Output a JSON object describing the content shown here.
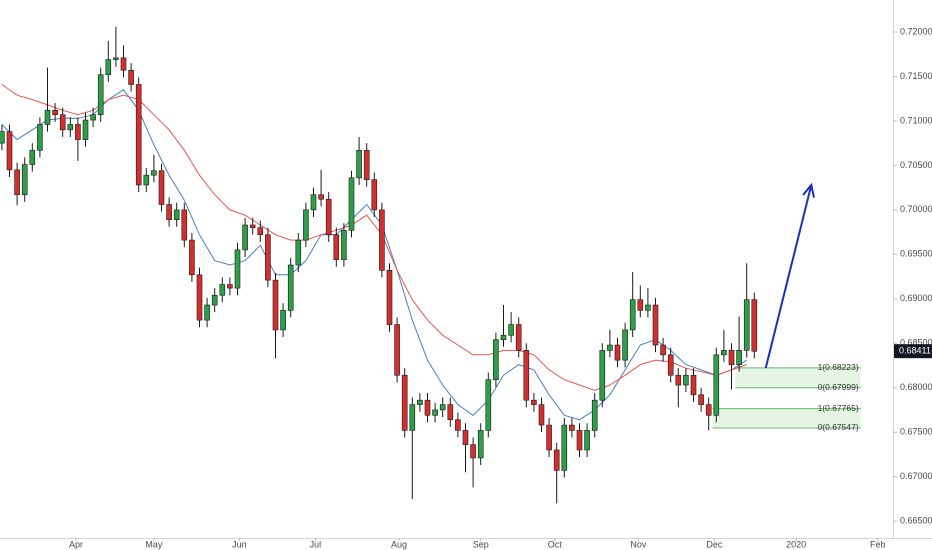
{
  "chart_data": {
    "type": "candlestick",
    "x": [
      0,
      2,
      4,
      6,
      8,
      10,
      12,
      14,
      16,
      18,
      20,
      22,
      24,
      26,
      28,
      30,
      32,
      34,
      36,
      38,
      40,
      42,
      44,
      46,
      48,
      50,
      52,
      54,
      56,
      58,
      60,
      62,
      64,
      66,
      68,
      70,
      72,
      74,
      76,
      78,
      80,
      82,
      84,
      86,
      88,
      90,
      92,
      94,
      96,
      98,
      100,
      102,
      104,
      106,
      108,
      110,
      112,
      114,
      116,
      118,
      120,
      122,
      124,
      126,
      128,
      130,
      132,
      134,
      136,
      138,
      140,
      142,
      144,
      146,
      148,
      150,
      152,
      154,
      156,
      158,
      160,
      162,
      164,
      166,
      168,
      170,
      172,
      174,
      176,
      178,
      180,
      182,
      184,
      186,
      188,
      190,
      192,
      194,
      196,
      198
    ],
    "open": [
      0.7075,
      0.7088,
      0.7045,
      0.7017,
      0.7051,
      0.7067,
      0.7096,
      0.7112,
      0.7107,
      0.709,
      0.7096,
      0.7079,
      0.7101,
      0.7107,
      0.7152,
      0.7169,
      0.7171,
      0.7157,
      0.7141,
      0.7028,
      0.7039,
      0.7044,
      0.7006,
      0.6989,
      0.7,
      0.6966,
      0.6927,
      0.6876,
      0.6893,
      0.6904,
      0.6916,
      0.6912,
      0.6955,
      0.6983,
      0.698,
      0.6972,
      0.6921,
      0.6865,
      0.6887,
      0.6938,
      0.6966,
      0.7,
      0.7017,
      0.7012,
      0.6972,
      0.6944,
      0.6977,
      0.7036,
      0.7067,
      0.7034,
      0.7,
      0.6932,
      0.6871,
      0.6814,
      0.6752,
      0.6781,
      0.6786,
      0.6769,
      0.6775,
      0.6781,
      0.6764,
      0.6752,
      0.6736,
      0.6721,
      0.6752,
      0.6809,
      0.6854,
      0.6859,
      0.6871,
      0.6842,
      0.6786,
      0.6781,
      0.6758,
      0.673,
      0.6707,
      0.6758,
      0.6752,
      0.673,
      0.6752,
      0.6786,
      0.6842,
      0.6848,
      0.6831,
      0.6865,
      0.6899,
      0.6887,
      0.6893,
      0.6848,
      0.6837,
      0.6814,
      0.6803,
      0.6814,
      0.6792,
      0.6781,
      0.6769,
      0.6837,
      0.6842,
      0.6826,
      0.6842,
      0.6899
    ],
    "high": [
      0.7096,
      0.7096,
      0.7053,
      0.7059,
      0.7075,
      0.7104,
      0.716,
      0.712,
      0.7115,
      0.7104,
      0.7104,
      0.7109,
      0.7115,
      0.716,
      0.719,
      0.7206,
      0.7185,
      0.7165,
      0.7149,
      0.7047,
      0.7062,
      0.7052,
      0.7014,
      0.7008,
      0.7008,
      0.6974,
      0.6935,
      0.6901,
      0.6912,
      0.6924,
      0.6924,
      0.6963,
      0.6991,
      0.6991,
      0.6988,
      0.698,
      0.6929,
      0.6895,
      0.6946,
      0.6974,
      0.7008,
      0.7025,
      0.7045,
      0.702,
      0.698,
      0.6985,
      0.7044,
      0.7082,
      0.7075,
      0.7042,
      0.7008,
      0.694,
      0.6879,
      0.6822,
      0.6789,
      0.6794,
      0.6794,
      0.6783,
      0.6789,
      0.6789,
      0.6772,
      0.676,
      0.6744,
      0.676,
      0.6817,
      0.6862,
      0.6893,
      0.6885,
      0.6879,
      0.685,
      0.6794,
      0.6789,
      0.6766,
      0.6738,
      0.6766,
      0.6766,
      0.676,
      0.676,
      0.6794,
      0.685,
      0.6865,
      0.6856,
      0.6873,
      0.693,
      0.6915,
      0.6912,
      0.6901,
      0.6856,
      0.6845,
      0.6822,
      0.6822,
      0.6822,
      0.68,
      0.6789,
      0.6845,
      0.6865,
      0.685,
      0.688,
      0.694,
      0.6907
    ],
    "low": [
      0.7067,
      0.7037,
      0.7005,
      0.7009,
      0.7043,
      0.7059,
      0.7088,
      0.7099,
      0.7082,
      0.7082,
      0.7055,
      0.7071,
      0.7093,
      0.7099,
      0.7144,
      0.7161,
      0.7149,
      0.7133,
      0.702,
      0.702,
      0.7031,
      0.6998,
      0.6981,
      0.6981,
      0.6958,
      0.6919,
      0.6868,
      0.6868,
      0.6885,
      0.6896,
      0.6904,
      0.6904,
      0.6947,
      0.6972,
      0.6964,
      0.6913,
      0.6833,
      0.6857,
      0.6879,
      0.693,
      0.6958,
      0.6992,
      0.7004,
      0.6964,
      0.6936,
      0.6936,
      0.6969,
      0.7028,
      0.7026,
      0.6992,
      0.6924,
      0.6863,
      0.6806,
      0.6744,
      0.6675,
      0.6773,
      0.6761,
      0.6761,
      0.6767,
      0.6756,
      0.6744,
      0.6705,
      0.6688,
      0.6713,
      0.6744,
      0.6801,
      0.6846,
      0.6851,
      0.6834,
      0.6778,
      0.6773,
      0.675,
      0.6722,
      0.667,
      0.6699,
      0.6744,
      0.6722,
      0.6722,
      0.6744,
      0.6778,
      0.6834,
      0.6823,
      0.6823,
      0.6857,
      0.6879,
      0.6879,
      0.684,
      0.6829,
      0.6806,
      0.6778,
      0.6795,
      0.6784,
      0.6773,
      0.6752,
      0.6761,
      0.6829,
      0.6798,
      0.6818,
      0.6834,
      0.6833
    ],
    "close": [
      0.7088,
      0.7045,
      0.7017,
      0.7051,
      0.7067,
      0.7096,
      0.7112,
      0.7107,
      0.709,
      0.7096,
      0.7079,
      0.7101,
      0.7107,
      0.7152,
      0.7169,
      0.7171,
      0.7157,
      0.7141,
      0.7028,
      0.7039,
      0.7044,
      0.7006,
      0.6989,
      0.7,
      0.6966,
      0.6927,
      0.6876,
      0.6893,
      0.6904,
      0.6916,
      0.6912,
      0.6955,
      0.6983,
      0.698,
      0.6972,
      0.6921,
      0.6865,
      0.6887,
      0.6938,
      0.6966,
      0.7,
      0.7017,
      0.7012,
      0.6972,
      0.6944,
      0.6977,
      0.7036,
      0.7067,
      0.7034,
      0.7,
      0.6932,
      0.6871,
      0.6814,
      0.6752,
      0.6781,
      0.6786,
      0.6769,
      0.6775,
      0.6781,
      0.6764,
      0.6752,
      0.6736,
      0.6721,
      0.6752,
      0.6809,
      0.6854,
      0.6859,
      0.6871,
      0.6842,
      0.6786,
      0.6781,
      0.6758,
      0.673,
      0.6707,
      0.6758,
      0.6752,
      0.673,
      0.6752,
      0.6786,
      0.6842,
      0.6848,
      0.6831,
      0.6865,
      0.6899,
      0.6887,
      0.6893,
      0.6848,
      0.6837,
      0.6814,
      0.6803,
      0.6814,
      0.6792,
      0.6781,
      0.6769,
      0.6837,
      0.6842,
      0.6826,
      0.6842,
      0.6899,
      0.6841
    ],
    "up_color": "#2e9e48",
    "down_color": "#d32f2f",
    "overlays": [
      {
        "color": "#4a7fc1",
        "x": [
          0,
          4,
          8,
          12,
          16,
          20,
          24,
          28,
          32,
          36,
          40,
          44,
          48,
          52,
          56,
          60,
          64,
          68,
          72,
          76,
          80,
          84,
          88,
          92,
          96,
          100,
          104,
          108,
          112,
          116,
          120,
          124,
          128,
          132,
          136,
          140,
          144,
          148,
          152,
          156,
          160,
          164,
          168,
          172,
          176,
          180,
          184,
          188,
          192,
          196
        ],
        "values": [
          0.7096,
          0.7079,
          0.709,
          0.7101,
          0.7103,
          0.7103,
          0.7107,
          0.7124,
          0.7135,
          0.7112,
          0.7073,
          0.7039,
          0.7011,
          0.6972,
          0.6943,
          0.6938,
          0.6943,
          0.696,
          0.6927,
          0.6927,
          0.6943,
          0.6972,
          0.6972,
          0.6989,
          0.7006,
          0.6983,
          0.6932,
          0.6876,
          0.6831,
          0.6803,
          0.6781,
          0.6769,
          0.6786,
          0.6814,
          0.6826,
          0.682,
          0.6792,
          0.6769,
          0.6764,
          0.6775,
          0.6792,
          0.682,
          0.6848,
          0.6854,
          0.6842,
          0.6826,
          0.682,
          0.6814,
          0.682,
          0.6831
        ]
      },
      {
        "color": "#ef5350",
        "x": [
          0,
          4,
          8,
          12,
          16,
          20,
          24,
          28,
          32,
          36,
          40,
          44,
          48,
          52,
          56,
          60,
          64,
          68,
          72,
          76,
          80,
          84,
          88,
          92,
          96,
          100,
          104,
          108,
          112,
          116,
          120,
          124,
          128,
          132,
          136,
          140,
          144,
          148,
          152,
          156,
          160,
          164,
          168,
          172,
          176,
          180,
          184,
          188,
          192,
          196
        ],
        "values": [
          0.7141,
          0.7129,
          0.7124,
          0.7118,
          0.7112,
          0.7107,
          0.7112,
          0.7124,
          0.7129,
          0.7124,
          0.7107,
          0.709,
          0.7067,
          0.7039,
          0.7017,
          0.7,
          0.6994,
          0.6983,
          0.6972,
          0.6966,
          0.6966,
          0.6972,
          0.6977,
          0.6983,
          0.6994,
          0.6972,
          0.6932,
          0.6899,
          0.6876,
          0.6859,
          0.6848,
          0.6837,
          0.6837,
          0.6842,
          0.6842,
          0.6837,
          0.682,
          0.6809,
          0.6803,
          0.6797,
          0.6803,
          0.6814,
          0.6826,
          0.6831,
          0.6829,
          0.6822,
          0.6818,
          0.6814,
          0.682,
          0.6826
        ]
      }
    ],
    "xlim": [
      -0.5,
      234.5
    ],
    "xticks": [
      {
        "value": 19.5,
        "label": "Apr"
      },
      {
        "value": 40,
        "label": "May"
      },
      {
        "value": 62.5,
        "label": "Jun"
      },
      {
        "value": 82.5,
        "label": "Jul"
      },
      {
        "value": 104.5,
        "label": "Aug"
      },
      {
        "value": 126,
        "label": "Sep"
      },
      {
        "value": 145.5,
        "label": "Oct"
      },
      {
        "value": 167.5,
        "label": "Nov"
      },
      {
        "value": 187.5,
        "label": "Dec"
      },
      {
        "value": 209,
        "label": "2020"
      },
      {
        "value": 230.5,
        "label": "Feb"
      }
    ],
    "ylim": [
      0.6631,
      0.7236
    ],
    "yticks": [
      {
        "value": 0.665,
        "label": "0.66500"
      },
      {
        "value": 0.67,
        "label": "0.67000"
      },
      {
        "value": 0.675,
        "label": "0.67500"
      },
      {
        "value": 0.68,
        "label": "0.68000"
      },
      {
        "value": 0.685,
        "label": "0.68500"
      },
      {
        "value": 0.69,
        "label": "0.69000"
      },
      {
        "value": 0.695,
        "label": "0.69500"
      },
      {
        "value": 0.7,
        "label": "0.70000"
      },
      {
        "value": 0.705,
        "label": "0.70500"
      },
      {
        "value": 0.71,
        "label": "0.71000"
      },
      {
        "value": 0.715,
        "label": "0.71500"
      },
      {
        "value": 0.72,
        "label": "0.72000"
      }
    ],
    "last_price": {
      "value": 0.68411,
      "label": "0.68411"
    },
    "zones": [
      {
        "x_start": 193,
        "x_end": 226,
        "levels": [
          {
            "value": 0.68223,
            "label": "1(0.68223)"
          },
          {
            "value": 0.67999,
            "label": "0(0.67999)"
          }
        ]
      },
      {
        "x_start": 187,
        "x_end": 226,
        "levels": [
          {
            "value": 0.67765,
            "label": "1(0.67765)"
          },
          {
            "value": 0.67547,
            "label": "0(0.67547)"
          }
        ]
      }
    ],
    "arrow": {
      "x": [
        201,
        213
      ],
      "y": [
        0.6822,
        0.7028
      ],
      "color": "#1a2fbf"
    }
  }
}
